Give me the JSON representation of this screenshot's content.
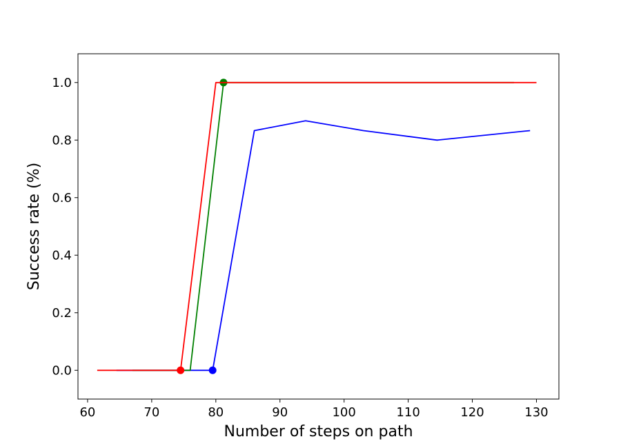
{
  "chart_data": {
    "type": "line",
    "title": "",
    "xlabel": "Number of steps on path",
    "ylabel": "Success rate (%)",
    "xlim": [
      58.5,
      133.5
    ],
    "ylim": [
      -0.1,
      1.1
    ],
    "xticks": [
      60,
      70,
      80,
      90,
      100,
      110,
      120,
      130
    ],
    "yticks": [
      0.0,
      0.2,
      0.4,
      0.6,
      0.8,
      1.0
    ],
    "xtick_labels": [
      "60",
      "70",
      "80",
      "90",
      "100",
      "110",
      "120",
      "130"
    ],
    "ytick_labels": [
      "0.0",
      "0.2",
      "0.4",
      "0.6",
      "0.8",
      "1.0"
    ],
    "grid": false,
    "series": [
      {
        "color": "#0000ff",
        "x": [
          64.5,
          79.5,
          86.0,
          94.0,
          103.0,
          114.5,
          129.0
        ],
        "y": [
          0.0,
          0.0,
          0.833,
          0.867,
          0.833,
          0.8,
          0.833
        ],
        "marker": {
          "x": 79.5,
          "y": 0.0
        }
      },
      {
        "color": "#008000",
        "x": [
          67.0,
          76.0,
          81.2,
          126.5
        ],
        "y": [
          0.0,
          0.0,
          1.0,
          1.0
        ],
        "marker": {
          "x": 81.2,
          "y": 1.0
        }
      },
      {
        "color": "#ff0000",
        "x": [
          61.5,
          74.5,
          80.0,
          130.0
        ],
        "y": [
          0.0,
          0.0,
          1.0,
          1.0
        ],
        "marker": {
          "x": 74.5,
          "y": 0.0
        }
      }
    ]
  }
}
